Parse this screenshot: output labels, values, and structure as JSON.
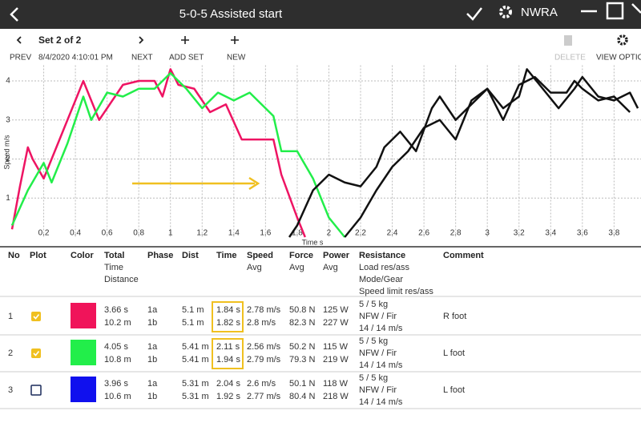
{
  "window": {
    "title": "5-0-5 Assisted start",
    "user": "NWRA"
  },
  "toolbar": {
    "set": "Set 2 of 2",
    "timestamp": "8/4/2020 4:10:01 PM",
    "prev": "PREV",
    "next": "NEXT",
    "add_set": "ADD SET",
    "new": "NEW",
    "delete": "DELETE",
    "view_options": "VIEW OPTIO"
  },
  "chart": {
    "type": "line",
    "ylabel": "Speed m/s",
    "xlabel": "Time s",
    "xlim": [
      0,
      3.97
    ],
    "ylim": [
      0,
      4.4
    ],
    "xticks": [
      0.2,
      0.4,
      0.6,
      0.8,
      1,
      1.2,
      1.4,
      1.6,
      1.8,
      2,
      2.2,
      2.4,
      2.6,
      2.8,
      3,
      3.2,
      3.4,
      3.6,
      3.8
    ],
    "yticks": [
      1,
      2,
      3,
      4
    ],
    "grid": true,
    "series": [
      {
        "color": "#ee1463",
        "x": [
          0,
          0.05,
          0.1,
          0.13,
          0.2,
          0.3,
          0.4,
          0.45,
          0.55,
          0.6,
          0.7,
          0.8,
          0.9,
          0.95,
          1.0,
          1.05,
          1.15,
          1.25,
          1.35,
          1.45,
          1.6,
          1.65,
          1.7,
          1.8,
          1.85
        ],
        "values": [
          0.2,
          1.3,
          2.3,
          2.0,
          1.5,
          2.5,
          3.5,
          4.0,
          3.0,
          3.3,
          3.9,
          4.0,
          4.0,
          3.6,
          4.3,
          3.9,
          3.8,
          3.2,
          3.4,
          2.5,
          2.5,
          2.5,
          1.6,
          0.5,
          0
        ]
      },
      {
        "color": "#22ee4a",
        "x": [
          0,
          0.1,
          0.2,
          0.25,
          0.35,
          0.45,
          0.5,
          0.6,
          0.7,
          0.8,
          0.9,
          1.0,
          1.1,
          1.2,
          1.3,
          1.4,
          1.5,
          1.55,
          1.65,
          1.7,
          1.8,
          1.9,
          2.0,
          2.1
        ],
        "values": [
          0.3,
          1.2,
          1.9,
          1.4,
          2.4,
          3.6,
          3.0,
          3.7,
          3.6,
          3.8,
          3.8,
          4.2,
          3.8,
          3.3,
          3.7,
          3.5,
          3.7,
          3.5,
          3.1,
          2.2,
          2.2,
          1.5,
          0.5,
          0
        ]
      },
      {
        "color": "#111111",
        "x": [
          1.75,
          1.8,
          1.9,
          2.0,
          2.1,
          2.2,
          2.3,
          2.35,
          2.45,
          2.55,
          2.65,
          2.7,
          2.8,
          2.9,
          3.0,
          3.1,
          3.2,
          3.3,
          3.4,
          3.5,
          3.55,
          3.6,
          3.7,
          3.8,
          3.9
        ],
        "values": [
          0,
          0.3,
          1.2,
          1.6,
          1.4,
          1.3,
          1.8,
          2.3,
          2.7,
          2.2,
          3.3,
          3.6,
          3.0,
          3.4,
          3.8,
          3.0,
          3.9,
          4.1,
          3.7,
          3.7,
          4.0,
          3.8,
          3.5,
          3.6,
          3.2
        ]
      },
      {
        "color": "#111111",
        "x": [
          2.1,
          2.2,
          2.3,
          2.4,
          2.5,
          2.6,
          2.7,
          2.8,
          2.9,
          3.0,
          3.1,
          3.2,
          3.25,
          3.35,
          3.45,
          3.55,
          3.6,
          3.7,
          3.8,
          3.9,
          3.95
        ],
        "values": [
          0,
          0.5,
          1.2,
          1.8,
          2.2,
          2.8,
          3.0,
          2.5,
          3.5,
          3.8,
          3.3,
          3.6,
          4.3,
          3.8,
          3.3,
          3.8,
          4.1,
          3.6,
          3.5,
          3.7,
          3.3
        ]
      }
    ]
  },
  "table": {
    "columns": [
      [
        "No"
      ],
      [
        "Plot"
      ],
      [
        "Color"
      ],
      [
        "Total",
        "Time",
        "Distance"
      ],
      [
        "Phase"
      ],
      [
        "Dist"
      ],
      [
        "Time"
      ],
      [
        "Speed",
        "Avg"
      ],
      [
        "Force",
        "Avg"
      ],
      [
        "Power",
        "Avg"
      ],
      [
        "Resistance",
        "Load res/ass",
        "Mode/Gear",
        "Speed limit res/ass"
      ],
      [
        "Comment"
      ]
    ],
    "rows": [
      {
        "no": 1,
        "checked": true,
        "color": "#f0145a",
        "total": [
          "3.66 s",
          "10.2 m"
        ],
        "phase": [
          "1a",
          "1b"
        ],
        "dist": [
          "5.1 m",
          "5.1 m"
        ],
        "time": [
          "1.84 s",
          "1.82 s"
        ],
        "time_highlight": true,
        "speed": [
          "2.78 m/s",
          "2.8 m/s"
        ],
        "force": [
          "50.8 N",
          "82.3 N"
        ],
        "power": [
          "125 W",
          "227 W"
        ],
        "resistance": [
          "5 / 5 kg",
          "NFW / Fir",
          "14 / 14 m/s"
        ],
        "comment": "R foot"
      },
      {
        "no": 2,
        "checked": true,
        "color": "#22ee4a",
        "total": [
          "4.05 s",
          "10.8 m"
        ],
        "phase": [
          "1a",
          "1b"
        ],
        "dist": [
          "5.41 m",
          "5.41 m"
        ],
        "time": [
          "2.11 s",
          "1.94 s"
        ],
        "time_highlight": true,
        "speed": [
          "2.56 m/s",
          "2.79 m/s"
        ],
        "force": [
          "50.2 N",
          "79.3 N"
        ],
        "power": [
          "115 W",
          "219 W"
        ],
        "resistance": [
          "5 / 5 kg",
          "NFW / Fir",
          "14 / 14 m/s"
        ],
        "comment": "L foot"
      },
      {
        "no": 3,
        "checked": false,
        "color": "#1010ee",
        "total": [
          "3.96 s",
          "10.6 m"
        ],
        "phase": [
          "1a",
          "1b"
        ],
        "dist": [
          "5.31 m",
          "5.31 m"
        ],
        "time": [
          "2.04 s",
          "1.92 s"
        ],
        "time_highlight": false,
        "speed": [
          "2.6 m/s",
          "2.77 m/s"
        ],
        "force": [
          "50.1 N",
          "80.4 N"
        ],
        "power": [
          "118 W",
          "218 W"
        ],
        "resistance": [
          "5 / 5 kg",
          "NFW / Fir",
          "14 / 14 m/s"
        ],
        "comment": "L foot"
      }
    ]
  }
}
